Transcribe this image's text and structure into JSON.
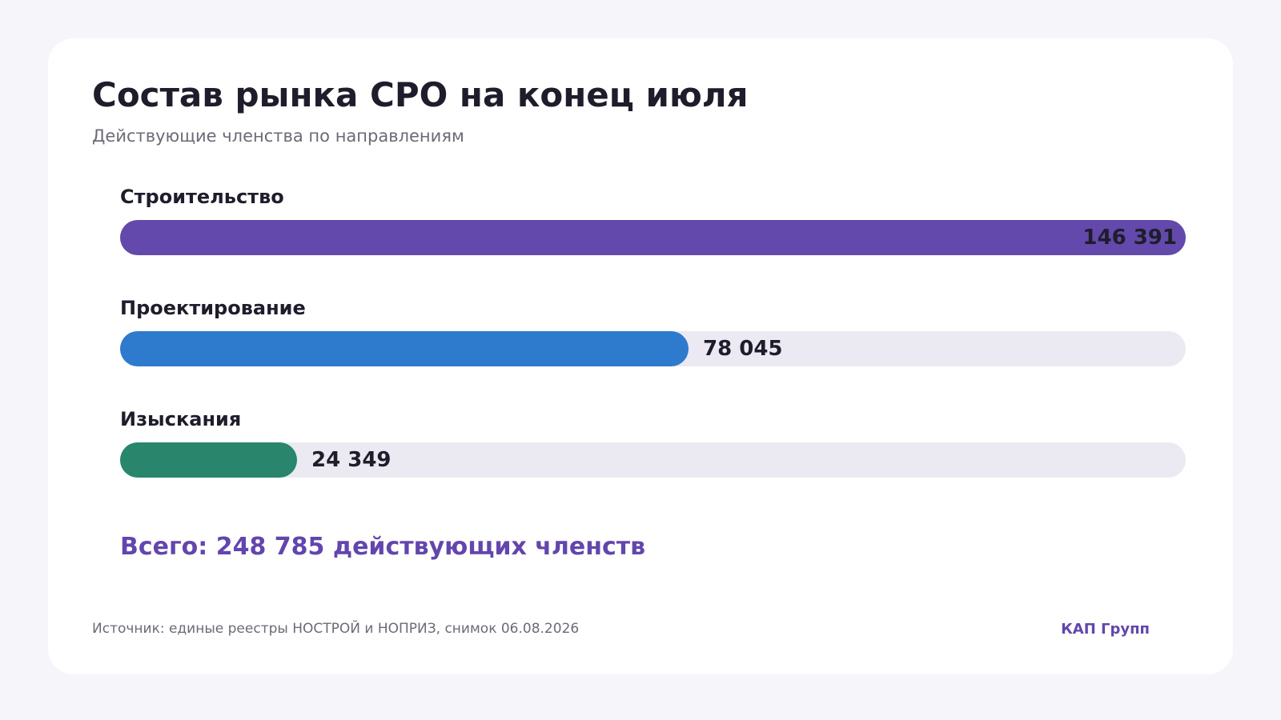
{
  "header": {
    "title": "Состав рынка СРО на конец июля",
    "subtitle": "Действующие членства по направлениям"
  },
  "chart_data": {
    "type": "bar",
    "orientation": "horizontal",
    "categories": [
      "Строительство",
      "Проектирование",
      "Изыскания"
    ],
    "values": [
      146391,
      78045,
      24349
    ],
    "value_labels": [
      "146 391",
      "78 045",
      "24 349"
    ],
    "colors": [
      "#6349ab",
      "#2e7acd",
      "#29856c"
    ],
    "track_color": "#ebe9f2",
    "xlim": [
      0,
      146391
    ],
    "grid": false,
    "legend": "none"
  },
  "summary": {
    "total_text": "Всего: 248 785 действующих членств"
  },
  "footer": {
    "source": "Источник: единые реестры НОСТРОЙ и НОПРИЗ, снимок 06.08.2026",
    "brand": "КАП Групп"
  }
}
